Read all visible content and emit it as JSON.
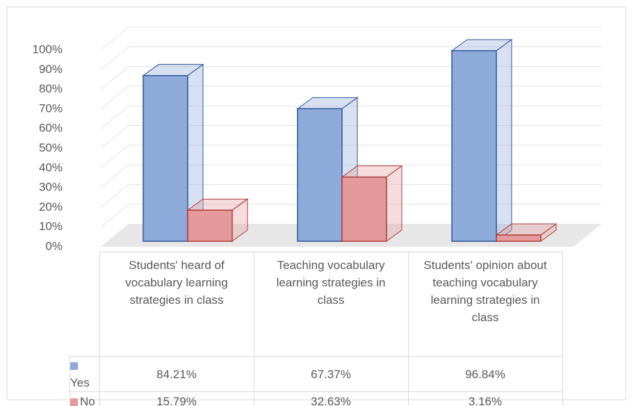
{
  "chart_data": {
    "type": "bar3d",
    "categories": [
      "Students' heard of vocabulary learning strategies in class",
      "Teaching vocabulary learning strategies in class",
      "Students' opinion about teaching vocabulary learning strategies in class"
    ],
    "series": [
      {
        "name": "Yes",
        "color": "#8eaadb",
        "values": [
          84.21,
          67.37,
          96.84
        ],
        "value_labels": [
          "84.21%",
          "67.37%",
          "96.84%"
        ]
      },
      {
        "name": "No",
        "color": "#e49a9a",
        "values": [
          15.79,
          32.63,
          3.16
        ],
        "value_labels": [
          "15.79%",
          "32.63%",
          "3.16%"
        ]
      }
    ],
    "ylim": [
      0,
      100
    ],
    "yticks": [
      {
        "value": 0,
        "label": "0%"
      },
      {
        "value": 10,
        "label": "10%"
      },
      {
        "value": 20,
        "label": "20%"
      },
      {
        "value": 30,
        "label": "30%"
      },
      {
        "value": 40,
        "label": "40%"
      },
      {
        "value": 50,
        "label": "50%"
      },
      {
        "value": 60,
        "label": "60%"
      },
      {
        "value": 70,
        "label": "70%"
      },
      {
        "value": 80,
        "label": "80%"
      },
      {
        "value": 90,
        "label": "90%"
      },
      {
        "value": 100,
        "label": "100%"
      }
    ],
    "grid": true
  }
}
